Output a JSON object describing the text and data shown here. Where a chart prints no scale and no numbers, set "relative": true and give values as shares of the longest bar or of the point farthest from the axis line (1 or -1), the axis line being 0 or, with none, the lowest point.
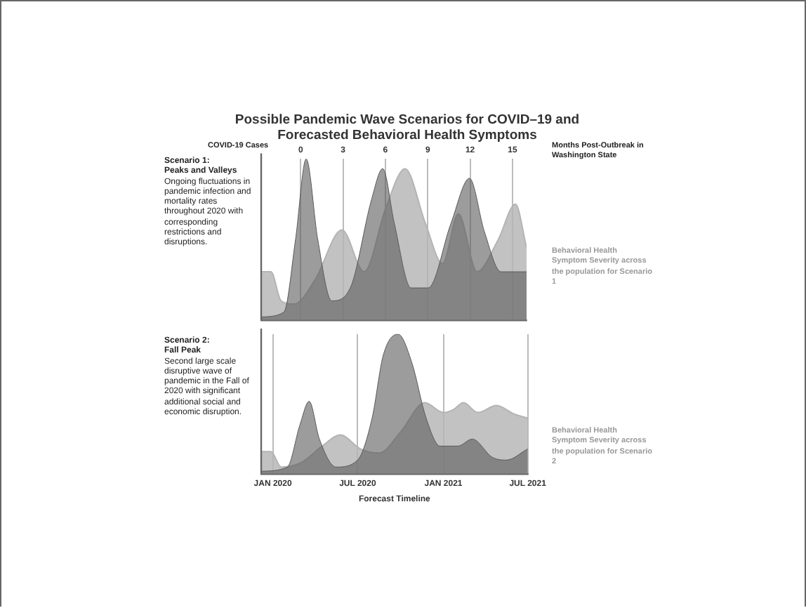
{
  "chart_data": [
    {
      "type": "area",
      "title": "Possible Pandemic Wave Scenarios for COVID–19 and Forecasted Behavioral Health Symptoms",
      "ylabel": "COVID-19 Cases",
      "x2label": "Months Post-Outbreak in Washington State",
      "relative": true,
      "grid": "x",
      "annotations": [
        "Scenario 1:",
        "Peaks and Valleys",
        "Ongoing fluctuations in pandemic infection and mortality rates throughout 2020 with corresponding restrictions and disruptions."
      ],
      "xlim": [
        "2019-12-07",
        "2021-07-01"
      ],
      "x2lim": [
        -2.8,
        16
      ],
      "x2ticks": [
        0,
        3,
        6,
        9,
        12,
        15
      ],
      "series": [
        {
          "color": "#5a5a5a",
          "x": [
            "2019-12-07",
            "2020-01-25",
            "2020-02-19",
            "2020-03-13",
            "2020-04-07",
            "2020-05-07",
            "2020-06-16",
            "2020-08-01",
            "2020-08-25",
            "2020-09-19",
            "2020-10-25",
            "2020-12-01",
            "2021-01-19",
            "2021-02-28",
            "2021-04-01",
            "2021-05-07",
            "2021-07-01"
          ],
          "values": [
            0.02,
            0.05,
            0.5,
            1,
            0.5,
            0.12,
            0.2,
            0.75,
            0.94,
            0.6,
            0.2,
            0.2,
            0.6,
            0.88,
            0.55,
            0.3,
            0.3
          ]
        },
        {
          "name": "Behavioral Health Symptom Severity across the population for Scenario 1",
          "color": "#b4b4b4",
          "x": [
            "2019-12-07",
            "2019-12-28",
            "2020-01-19",
            "2020-02-16",
            "2020-04-01",
            "2020-05-29",
            "2020-07-16",
            "2020-09-01",
            "2020-10-12",
            "2020-11-25",
            "2021-01-01",
            "2021-02-04",
            "2021-03-16",
            "2021-05-01",
            "2021-06-07",
            "2021-07-01"
          ],
          "values": [
            0.3,
            0.3,
            0.12,
            0.1,
            0.25,
            0.56,
            0.3,
            0.7,
            0.94,
            0.6,
            0.35,
            0.66,
            0.3,
            0.5,
            0.72,
            0.45
          ]
        }
      ]
    },
    {
      "type": "area",
      "xlabel": "Forecast Timeline",
      "relative": true,
      "grid": "x",
      "annotations": [
        "Scenario 2:",
        "Fall Peak",
        "Second large scale disruptive wave of pandemic in the Fall of 2020 with significant additional social and economic disruption."
      ],
      "xlim": [
        "2019-12-07",
        "2021-07-01"
      ],
      "xticks": [
        {
          "value": "2020-01",
          "label": "JAN 2020"
        },
        {
          "value": "2020-07",
          "label": "JUL 2020"
        },
        {
          "value": "2021-01",
          "label": "JAN 2021"
        },
        {
          "value": "2021-07",
          "label": "JUL 2021"
        }
      ],
      "series": [
        {
          "color": "#5a5a5a",
          "x": [
            "2019-12-07",
            "2020-02-01",
            "2020-02-28",
            "2020-03-19",
            "2020-04-10",
            "2020-05-16",
            "2020-07-01",
            "2020-08-01",
            "2020-08-25",
            "2020-09-26",
            "2020-10-25",
            "2020-11-25",
            "2020-12-25",
            "2021-02-01",
            "2021-03-04",
            "2021-04-16",
            "2021-05-16",
            "2021-07-01"
          ],
          "values": [
            0.02,
            0.05,
            0.35,
            0.52,
            0.25,
            0.05,
            0.1,
            0.4,
            0.85,
            1,
            0.8,
            0.4,
            0.2,
            0.2,
            0.25,
            0.12,
            0.1,
            0.18
          ]
        },
        {
          "name": "Behavioral Health Symptom Severity across the population for Scenario 2",
          "color": "#b4b4b4",
          "x": [
            "2019-12-07",
            "2019-12-28",
            "2020-01-19",
            "2020-03-01",
            "2020-04-16",
            "2020-05-25",
            "2020-07-07",
            "2020-08-16",
            "2020-10-01",
            "2020-11-22",
            "2021-01-01",
            "2021-01-22",
            "2021-02-13",
            "2021-03-16",
            "2021-04-25",
            "2021-06-01",
            "2021-07-01"
          ],
          "values": [
            0.16,
            0.16,
            0.05,
            0.08,
            0.2,
            0.28,
            0.18,
            0.15,
            0.3,
            0.51,
            0.44,
            0.46,
            0.51,
            0.44,
            0.49,
            0.43,
            0.4
          ]
        }
      ]
    }
  ]
}
